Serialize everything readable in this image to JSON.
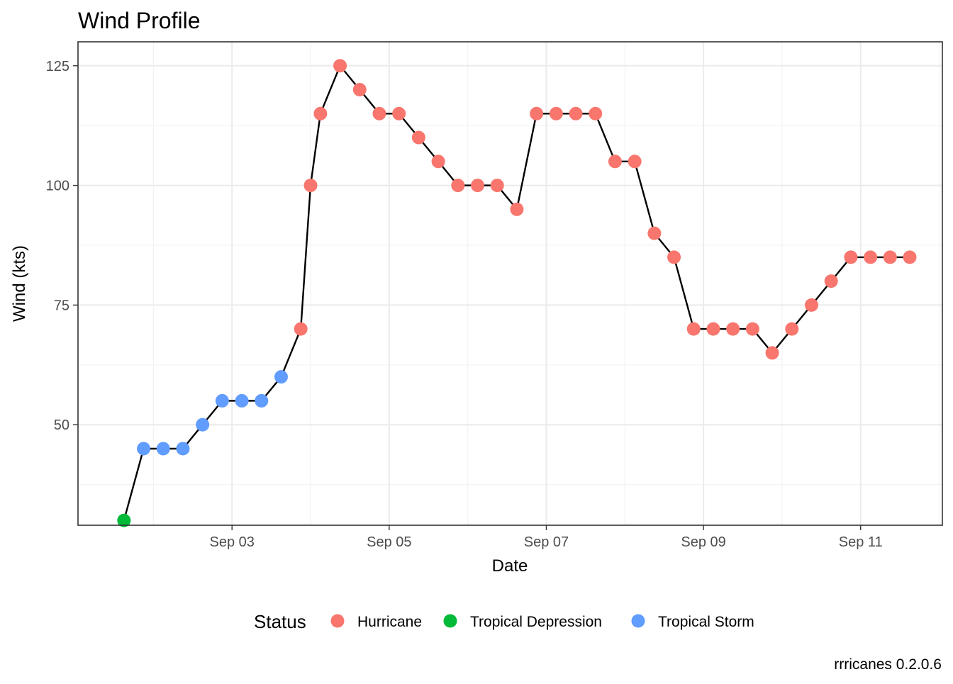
{
  "chart_data": {
    "type": "line",
    "title": "Wind Profile",
    "xlabel": "Date",
    "ylabel": "Wind (kts)",
    "caption": "rrricanes 0.2.0.6",
    "x_ticks": [
      {
        "label": "Sep 03",
        "value": 3.0
      },
      {
        "label": "Sep 05",
        "value": 5.0
      },
      {
        "label": "Sep 07",
        "value": 7.0
      },
      {
        "label": "Sep 09",
        "value": 9.0
      },
      {
        "label": "Sep 11",
        "value": 11.0
      }
    ],
    "y_ticks": [
      50,
      75,
      100,
      125
    ],
    "xlim": [
      1.04,
      12.04
    ],
    "ylim": [
      29,
      130
    ],
    "grid": true,
    "legend": {
      "title": "Status",
      "position": "bottom",
      "entries": [
        {
          "name": "Hurricane",
          "color": "#F8766D"
        },
        {
          "name": "Tropical Depression",
          "color": "#00BA38"
        },
        {
          "name": "Tropical Storm",
          "color": "#619CFF"
        }
      ]
    },
    "points": [
      {
        "x": 1.625,
        "y": 30,
        "status": "Tropical Depression"
      },
      {
        "x": 1.875,
        "y": 45,
        "status": "Tropical Storm"
      },
      {
        "x": 2.125,
        "y": 45,
        "status": "Tropical Storm"
      },
      {
        "x": 2.375,
        "y": 45,
        "status": "Tropical Storm"
      },
      {
        "x": 2.625,
        "y": 50,
        "status": "Tropical Storm"
      },
      {
        "x": 2.875,
        "y": 55,
        "status": "Tropical Storm"
      },
      {
        "x": 3.125,
        "y": 55,
        "status": "Tropical Storm"
      },
      {
        "x": 3.375,
        "y": 55,
        "status": "Tropical Storm"
      },
      {
        "x": 3.625,
        "y": 60,
        "status": "Tropical Storm"
      },
      {
        "x": 3.875,
        "y": 70,
        "status": "Hurricane"
      },
      {
        "x": 4.0,
        "y": 100,
        "status": "Hurricane"
      },
      {
        "x": 4.125,
        "y": 115,
        "status": "Hurricane"
      },
      {
        "x": 4.375,
        "y": 125,
        "status": "Hurricane"
      },
      {
        "x": 4.625,
        "y": 120,
        "status": "Hurricane"
      },
      {
        "x": 4.875,
        "y": 115,
        "status": "Hurricane"
      },
      {
        "x": 5.125,
        "y": 115,
        "status": "Hurricane"
      },
      {
        "x": 5.375,
        "y": 110,
        "status": "Hurricane"
      },
      {
        "x": 5.625,
        "y": 105,
        "status": "Hurricane"
      },
      {
        "x": 5.875,
        "y": 100,
        "status": "Hurricane"
      },
      {
        "x": 6.125,
        "y": 100,
        "status": "Hurricane"
      },
      {
        "x": 6.375,
        "y": 100,
        "status": "Hurricane"
      },
      {
        "x": 6.625,
        "y": 95,
        "status": "Hurricane"
      },
      {
        "x": 6.875,
        "y": 115,
        "status": "Hurricane"
      },
      {
        "x": 7.125,
        "y": 115,
        "status": "Hurricane"
      },
      {
        "x": 7.375,
        "y": 115,
        "status": "Hurricane"
      },
      {
        "x": 7.625,
        "y": 115,
        "status": "Hurricane"
      },
      {
        "x": 7.875,
        "y": 105,
        "status": "Hurricane"
      },
      {
        "x": 8.125,
        "y": 105,
        "status": "Hurricane"
      },
      {
        "x": 8.375,
        "y": 90,
        "status": "Hurricane"
      },
      {
        "x": 8.625,
        "y": 85,
        "status": "Hurricane"
      },
      {
        "x": 8.875,
        "y": 70,
        "status": "Hurricane"
      },
      {
        "x": 9.125,
        "y": 70,
        "status": "Hurricane"
      },
      {
        "x": 9.375,
        "y": 70,
        "status": "Hurricane"
      },
      {
        "x": 9.625,
        "y": 70,
        "status": "Hurricane"
      },
      {
        "x": 9.875,
        "y": 65,
        "status": "Hurricane"
      },
      {
        "x": 10.125,
        "y": 70,
        "status": "Hurricane"
      },
      {
        "x": 10.375,
        "y": 75,
        "status": "Hurricane"
      },
      {
        "x": 10.625,
        "y": 80,
        "status": "Hurricane"
      },
      {
        "x": 10.875,
        "y": 85,
        "status": "Hurricane"
      },
      {
        "x": 11.125,
        "y": 85,
        "status": "Hurricane"
      },
      {
        "x": 11.375,
        "y": 85,
        "status": "Hurricane"
      },
      {
        "x": 11.625,
        "y": 85,
        "status": "Hurricane"
      }
    ]
  }
}
